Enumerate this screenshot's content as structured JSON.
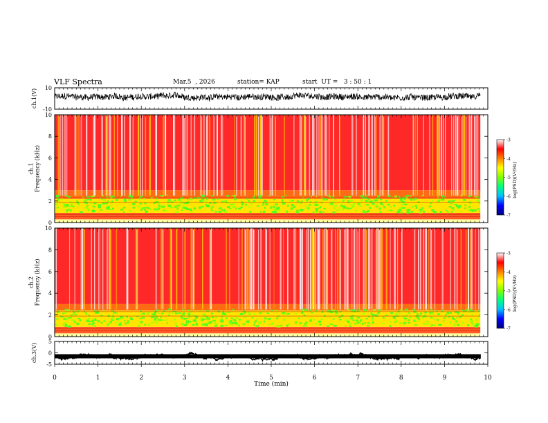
{
  "header": {
    "title": "VLF Spectra",
    "date": "Mar.5  , 2026",
    "station": "station= KAP",
    "start": "start  UT =   3 : 50 : 1"
  },
  "chart_data": [
    {
      "type": "line",
      "name": "ch1-waveform",
      "ylabel": "ch.1(V)",
      "ylim": [
        -10,
        10
      ],
      "yticks": [
        "10",
        "-10"
      ],
      "xlim": [
        0,
        10
      ],
      "data_end_min": 9.83,
      "series": [
        {
          "name": "ch.1",
          "mean": 1.5,
          "amplitude_V": 6
        }
      ]
    },
    {
      "type": "heatmap",
      "name": "ch1-spectrogram",
      "ylabel": "ch.1\nFrequency  (kHz)",
      "ylim": [
        0,
        10
      ],
      "yticks": [
        "0",
        "2",
        "4",
        "6",
        "8",
        "10"
      ],
      "xlim": [
        0,
        10
      ],
      "colorbar": {
        "label": "log(PSD)(V²/Hz)",
        "range": [
          -7,
          -3
        ],
        "ticks": [
          "-3",
          "-4",
          "-5",
          "-6",
          "-7"
        ],
        "colors": [
          "#000080",
          "#0000ff",
          "#00c0ff",
          "#00ff80",
          "#80ff00",
          "#ffff00",
          "#ff8000",
          "#ff0000",
          "#ffffff"
        ]
      },
      "bands": [
        {
          "from_kHz": 0.0,
          "to_kHz": 0.3,
          "color": "#ffffa0"
        },
        {
          "from_kHz": 0.3,
          "to_kHz": 0.9,
          "color": "#ff5a28"
        },
        {
          "from_kHz": 0.9,
          "to_kHz": 2.2,
          "color": "#ffe600"
        },
        {
          "from_kHz": 2.2,
          "to_kHz": 3.0,
          "color": "#ff6a14"
        },
        {
          "from_kHz": 3.0,
          "to_kHz": 10.0,
          "color": "#ff2828"
        }
      ]
    },
    {
      "type": "heatmap",
      "name": "ch2-spectrogram",
      "ylabel": "ch.2\nFrequency  (kHz)",
      "ylim": [
        0,
        10
      ],
      "yticks": [
        "0",
        "2",
        "4",
        "6",
        "8",
        "10"
      ],
      "xlim": [
        0,
        10
      ],
      "colorbar": {
        "label": "log(PSD)(V²/Hz)",
        "range": [
          -7,
          -3
        ],
        "ticks": [
          "-3",
          "-4",
          "-5",
          "-6",
          "-7"
        ],
        "colors": [
          "#000080",
          "#0000ff",
          "#00c0ff",
          "#00ff80",
          "#80ff00",
          "#ffff00",
          "#ff8000",
          "#ff0000",
          "#ffffff"
        ]
      },
      "bands": [
        {
          "from_kHz": 0.0,
          "to_kHz": 0.3,
          "color": "#ffffa0"
        },
        {
          "from_kHz": 0.3,
          "to_kHz": 0.9,
          "color": "#ff5a28"
        },
        {
          "from_kHz": 0.9,
          "to_kHz": 2.4,
          "color": "#ffe600"
        },
        {
          "from_kHz": 2.4,
          "to_kHz": 3.0,
          "color": "#ff6a14"
        },
        {
          "from_kHz": 3.0,
          "to_kHz": 10.0,
          "color": "#ff2828"
        }
      ]
    },
    {
      "type": "line",
      "name": "ch3-waveform",
      "ylabel": "ch.3(V)",
      "ylim": [
        -5,
        5
      ],
      "yticks": [
        "5",
        "0",
        "-5"
      ],
      "xlim": [
        0,
        10
      ],
      "data_end_min": 9.83,
      "series": [
        {
          "name": "ch.3",
          "mean": -1.5,
          "amplitude_V": 0.5
        }
      ]
    }
  ],
  "xaxis": {
    "label": "Time  (min)",
    "ticks": [
      "0",
      "1",
      "2",
      "3",
      "4",
      "5",
      "6",
      "7",
      "8",
      "9",
      "10"
    ]
  }
}
